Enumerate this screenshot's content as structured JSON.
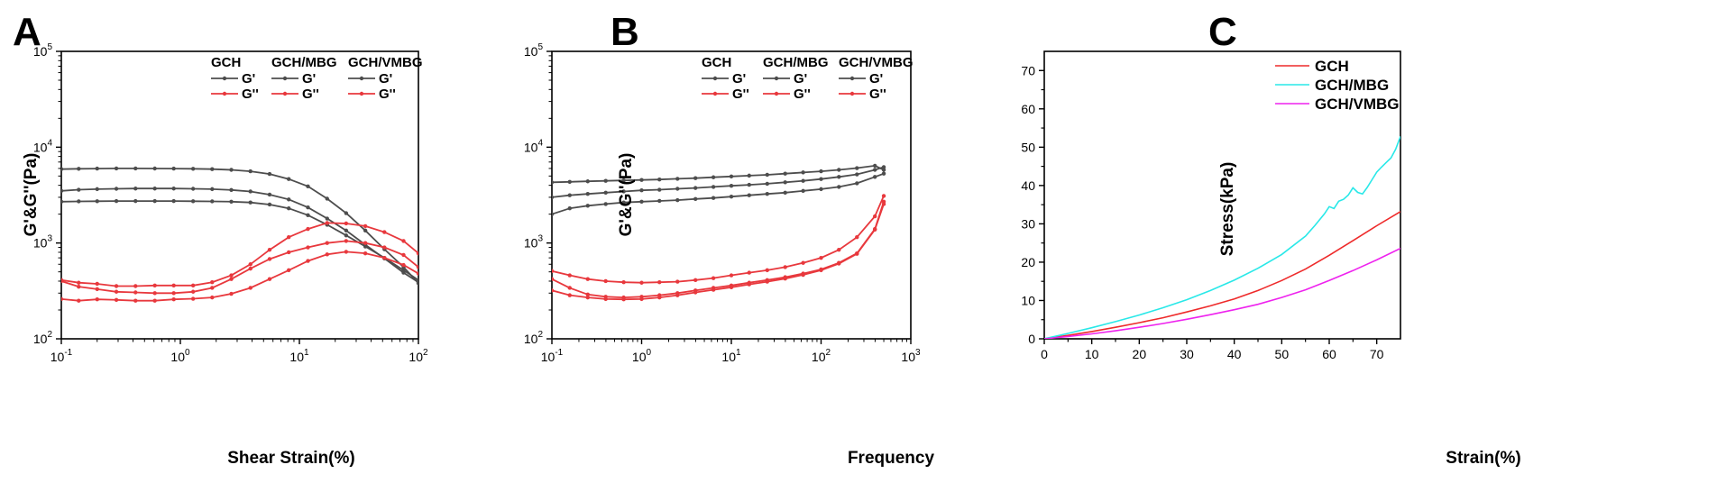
{
  "chart_data": [
    {
      "panel": "A",
      "type": "line",
      "xlabel": "Shear Strain(%)",
      "ylabel": "G'&G''(Pa)",
      "xscale": "log",
      "yscale": "log",
      "xlim": [
        0.1,
        100
      ],
      "ylim": [
        100,
        100000
      ],
      "xticks": [
        0.1,
        1,
        10,
        100
      ],
      "yticks": [
        100,
        1000,
        10000,
        100000
      ],
      "xtick_labels": [
        {
          "b": "10",
          "e": "-1"
        },
        {
          "b": "10",
          "e": "0"
        },
        {
          "b": "10",
          "e": "1"
        },
        {
          "b": "10",
          "e": "2"
        }
      ],
      "ytick_labels": [
        {
          "b": "10",
          "e": "2"
        },
        {
          "b": "10",
          "e": "3"
        },
        {
          "b": "10",
          "e": "4"
        },
        {
          "b": "10",
          "e": "5"
        }
      ],
      "legend": {
        "placement": "top-right",
        "groups": [
          {
            "head": "GCH",
            "items": [
              {
                "label": "G'",
                "color": "#4d4d4d"
              },
              {
                "label": "G''",
                "color": "#e8383d"
              }
            ]
          },
          {
            "head": "GCH/MBG",
            "items": [
              {
                "label": "G'",
                "color": "#4d4d4d"
              },
              {
                "label": "G''",
                "color": "#e8383d"
              }
            ]
          },
          {
            "head": "GCH/VMBG",
            "items": [
              {
                "label": "G'",
                "color": "#4d4d4d"
              },
              {
                "label": "G''",
                "color": "#e8383d"
              }
            ]
          }
        ]
      },
      "series": [
        {
          "group": "GCH",
          "modulus": "G'",
          "color": "#4d4d4d",
          "x": [
            0.1,
            0.14,
            0.2,
            0.29,
            0.42,
            0.61,
            0.88,
            1.28,
            1.85,
            2.68,
            3.88,
            5.62,
            8.14,
            11.8,
            17.1,
            24.7,
            35.8,
            51.8,
            75.0,
            100
          ],
          "y": [
            5900,
            5950,
            5980,
            6000,
            6000,
            5990,
            5980,
            5950,
            5900,
            5800,
            5600,
            5250,
            4650,
            3900,
            2900,
            2050,
            1350,
            860,
            560,
            380
          ]
        },
        {
          "group": "GCH/MBG",
          "modulus": "G'",
          "color": "#4d4d4d",
          "x": [
            0.1,
            0.14,
            0.2,
            0.29,
            0.42,
            0.61,
            0.88,
            1.28,
            1.85,
            2.68,
            3.88,
            5.62,
            8.14,
            11.8,
            17.1,
            24.7,
            35.8,
            51.8,
            75.0,
            100
          ],
          "y": [
            3500,
            3600,
            3650,
            3680,
            3700,
            3700,
            3700,
            3680,
            3650,
            3580,
            3450,
            3200,
            2850,
            2350,
            1800,
            1350,
            960,
            690,
            490,
            390
          ]
        },
        {
          "group": "GCH/VMBG",
          "modulus": "G'",
          "color": "#4d4d4d",
          "x": [
            0.1,
            0.14,
            0.2,
            0.29,
            0.42,
            0.61,
            0.88,
            1.28,
            1.85,
            2.68,
            3.88,
            5.62,
            8.14,
            11.8,
            17.1,
            24.7,
            35.8,
            51.8,
            75.0,
            100
          ],
          "y": [
            2700,
            2720,
            2730,
            2740,
            2740,
            2740,
            2740,
            2730,
            2720,
            2700,
            2650,
            2520,
            2300,
            1950,
            1550,
            1200,
            920,
            700,
            520,
            410
          ]
        },
        {
          "group": "GCH",
          "modulus": "G''",
          "color": "#e8383d",
          "x": [
            0.1,
            0.14,
            0.2,
            0.29,
            0.42,
            0.61,
            0.88,
            1.28,
            1.85,
            2.68,
            3.88,
            5.62,
            8.14,
            11.8,
            17.1,
            24.7,
            35.8,
            51.8,
            75.0,
            100
          ],
          "y": [
            410,
            385,
            375,
            355,
            355,
            360,
            360,
            360,
            390,
            460,
            600,
            850,
            1150,
            1400,
            1620,
            1600,
            1500,
            1300,
            1050,
            780
          ]
        },
        {
          "group": "GCH/MBG",
          "modulus": "G''",
          "color": "#e8383d",
          "x": [
            0.1,
            0.14,
            0.2,
            0.29,
            0.42,
            0.61,
            0.88,
            1.28,
            1.85,
            2.68,
            3.88,
            5.62,
            8.14,
            11.8,
            17.1,
            24.7,
            35.8,
            51.8,
            75.0,
            100
          ],
          "y": [
            400,
            350,
            330,
            310,
            305,
            300,
            300,
            310,
            340,
            420,
            540,
            680,
            800,
            900,
            1000,
            1050,
            1000,
            900,
            750,
            560
          ]
        },
        {
          "group": "GCH/VMBG",
          "modulus": "G''",
          "color": "#e8383d",
          "x": [
            0.1,
            0.14,
            0.2,
            0.29,
            0.42,
            0.61,
            0.88,
            1.28,
            1.85,
            2.68,
            3.88,
            5.62,
            8.14,
            11.8,
            17.1,
            24.7,
            35.8,
            51.8,
            75.0,
            100
          ],
          "y": [
            260,
            250,
            258,
            255,
            250,
            250,
            258,
            262,
            270,
            295,
            340,
            420,
            520,
            650,
            760,
            810,
            780,
            700,
            590,
            480
          ]
        }
      ]
    },
    {
      "panel": "B",
      "type": "line",
      "xlabel": "Frequency",
      "ylabel": "G'&G''(Pa)",
      "xscale": "log",
      "yscale": "log",
      "xlim": [
        0.1,
        1000
      ],
      "ylim": [
        100,
        100000
      ],
      "xticks": [
        0.1,
        1,
        10,
        100,
        1000
      ],
      "yticks": [
        100,
        1000,
        10000,
        100000
      ],
      "xtick_labels": [
        {
          "b": "10",
          "e": "-1"
        },
        {
          "b": "10",
          "e": "0"
        },
        {
          "b": "10",
          "e": "1"
        },
        {
          "b": "10",
          "e": "2"
        },
        {
          "b": "10",
          "e": "3"
        }
      ],
      "ytick_labels": [
        {
          "b": "10",
          "e": "2"
        },
        {
          "b": "10",
          "e": "3"
        },
        {
          "b": "10",
          "e": "4"
        },
        {
          "b": "10",
          "e": "5"
        }
      ],
      "legend": {
        "placement": "top-right",
        "groups": [
          {
            "head": "GCH",
            "items": [
              {
                "label": "G'",
                "color": "#4d4d4d"
              },
              {
                "label": "G''",
                "color": "#e8383d"
              }
            ]
          },
          {
            "head": "GCH/MBG",
            "items": [
              {
                "label": "G'",
                "color": "#4d4d4d"
              },
              {
                "label": "G''",
                "color": "#e8383d"
              }
            ]
          },
          {
            "head": "GCH/VMBG",
            "items": [
              {
                "label": "G'",
                "color": "#4d4d4d"
              },
              {
                "label": "G''",
                "color": "#e8383d"
              }
            ]
          }
        ]
      },
      "series": [
        {
          "group": "GCH",
          "modulus": "G'",
          "color": "#4d4d4d",
          "x": [
            0.1,
            0.158,
            0.251,
            0.398,
            0.631,
            1,
            1.58,
            2.51,
            3.98,
            6.31,
            10,
            15.8,
            25.1,
            39.8,
            63.1,
            100,
            158,
            251,
            398,
            500
          ],
          "y": [
            4300,
            4350,
            4400,
            4450,
            4500,
            4550,
            4600,
            4680,
            4750,
            4850,
            4950,
            5050,
            5150,
            5300,
            5450,
            5600,
            5800,
            6050,
            6400,
            5800
          ]
        },
        {
          "group": "GCH/MBG",
          "modulus": "G'",
          "color": "#4d4d4d",
          "x": [
            0.1,
            0.158,
            0.251,
            0.398,
            0.631,
            1,
            1.58,
            2.51,
            3.98,
            6.31,
            10,
            15.8,
            25.1,
            39.8,
            63.1,
            100,
            158,
            251,
            398,
            500
          ],
          "y": [
            3000,
            3150,
            3250,
            3350,
            3450,
            3550,
            3600,
            3680,
            3750,
            3850,
            3950,
            4050,
            4150,
            4300,
            4450,
            4650,
            4900,
            5200,
            5800,
            6200
          ]
        },
        {
          "group": "GCH/VMBG",
          "modulus": "G'",
          "color": "#4d4d4d",
          "x": [
            0.1,
            0.158,
            0.251,
            0.398,
            0.631,
            1,
            1.58,
            2.51,
            3.98,
            6.31,
            10,
            15.8,
            25.1,
            39.8,
            63.1,
            100,
            158,
            251,
            398,
            500
          ],
          "y": [
            2000,
            2300,
            2450,
            2550,
            2650,
            2700,
            2750,
            2800,
            2880,
            2950,
            3050,
            3150,
            3250,
            3350,
            3500,
            3650,
            3850,
            4200,
            4900,
            5300
          ]
        },
        {
          "group": "GCH",
          "modulus": "G''",
          "color": "#e8383d",
          "x": [
            0.1,
            0.158,
            0.251,
            0.398,
            0.631,
            1,
            1.58,
            2.51,
            3.98,
            6.31,
            10,
            15.8,
            25.1,
            39.8,
            63.1,
            100,
            158,
            251,
            398,
            500
          ],
          "y": [
            510,
            460,
            420,
            400,
            390,
            385,
            390,
            395,
            410,
            430,
            460,
            490,
            520,
            560,
            620,
            700,
            850,
            1150,
            1900,
            3100
          ]
        },
        {
          "group": "GCH/MBG",
          "modulus": "G''",
          "color": "#e8383d",
          "x": [
            0.1,
            0.158,
            0.251,
            0.398,
            0.631,
            1,
            1.58,
            2.51,
            3.98,
            6.31,
            10,
            15.8,
            25.1,
            39.8,
            63.1,
            100,
            158,
            251,
            398,
            500
          ],
          "y": [
            420,
            340,
            290,
            275,
            270,
            275,
            285,
            300,
            320,
            340,
            360,
            385,
            410,
            440,
            480,
            530,
            620,
            780,
            1400,
            2700
          ]
        },
        {
          "group": "GCH/VMBG",
          "modulus": "G''",
          "color": "#e8383d",
          "x": [
            0.1,
            0.158,
            0.251,
            0.398,
            0.631,
            1,
            1.58,
            2.51,
            3.98,
            6.31,
            10,
            15.8,
            25.1,
            39.8,
            63.1,
            100,
            158,
            251,
            398,
            500
          ],
          "y": [
            320,
            285,
            270,
            260,
            258,
            260,
            270,
            285,
            305,
            325,
            345,
            370,
            395,
            425,
            465,
            520,
            610,
            770,
            1380,
            2550
          ]
        }
      ]
    },
    {
      "panel": "C",
      "type": "line",
      "xlabel": "Strain(%)",
      "ylabel": "Stress(kPa)",
      "xscale": "linear",
      "yscale": "linear",
      "xlim": [
        0,
        75
      ],
      "ylim": [
        0,
        75
      ],
      "xticks": [
        0,
        10,
        20,
        30,
        40,
        50,
        60,
        70
      ],
      "yticks": [
        0,
        10,
        20,
        30,
        40,
        50,
        60,
        70
      ],
      "xtick_labels": [
        "0",
        "10",
        "20",
        "30",
        "40",
        "50",
        "60",
        "70"
      ],
      "ytick_labels": [
        "0",
        "10",
        "20",
        "30",
        "40",
        "50",
        "60",
        "70"
      ],
      "legend": {
        "placement": "top-right",
        "items": [
          {
            "label": "GCH",
            "color": "#ee2a2a"
          },
          {
            "label": "GCH/MBG",
            "color": "#29e8e8"
          },
          {
            "label": "GCH/VMBG",
            "color": "#ee22ee"
          }
        ]
      },
      "series": [
        {
          "name": "GCH",
          "color": "#ee2a2a",
          "x": [
            0,
            5,
            10,
            15,
            20,
            25,
            30,
            35,
            40,
            45,
            50,
            55,
            60,
            65,
            70,
            75
          ],
          "y": [
            0,
            0.9,
            1.9,
            3.0,
            4.2,
            5.5,
            7.0,
            8.6,
            10.4,
            12.6,
            15.2,
            18.2,
            21.8,
            25.6,
            29.5,
            33.2
          ]
        },
        {
          "name": "GCH/MBG",
          "color": "#29e8e8",
          "x": [
            0,
            5,
            10,
            15,
            20,
            25,
            30,
            35,
            40,
            45,
            50,
            55,
            57,
            59,
            60,
            61,
            62,
            63,
            64,
            65,
            66,
            67,
            68,
            69,
            70,
            71,
            72,
            73,
            74,
            75
          ],
          "y": [
            0,
            1.4,
            2.9,
            4.5,
            6.2,
            8.1,
            10.2,
            12.6,
            15.3,
            18.4,
            22.0,
            26.8,
            29.6,
            32.6,
            34.5,
            34.0,
            35.9,
            36.4,
            37.5,
            39.4,
            38.2,
            37.8,
            39.5,
            41.5,
            43.5,
            44.8,
            46.0,
            47.2,
            49.5,
            52.8
          ]
        },
        {
          "name": "GCH/VMBG",
          "color": "#ee22ee",
          "x": [
            0,
            5,
            10,
            15,
            20,
            25,
            30,
            35,
            40,
            45,
            50,
            55,
            60,
            65,
            70,
            75
          ],
          "y": [
            0,
            0.6,
            1.3,
            2.1,
            3.0,
            4.0,
            5.1,
            6.3,
            7.6,
            9.0,
            10.8,
            12.8,
            15.2,
            17.8,
            20.6,
            23.6
          ]
        }
      ]
    }
  ]
}
